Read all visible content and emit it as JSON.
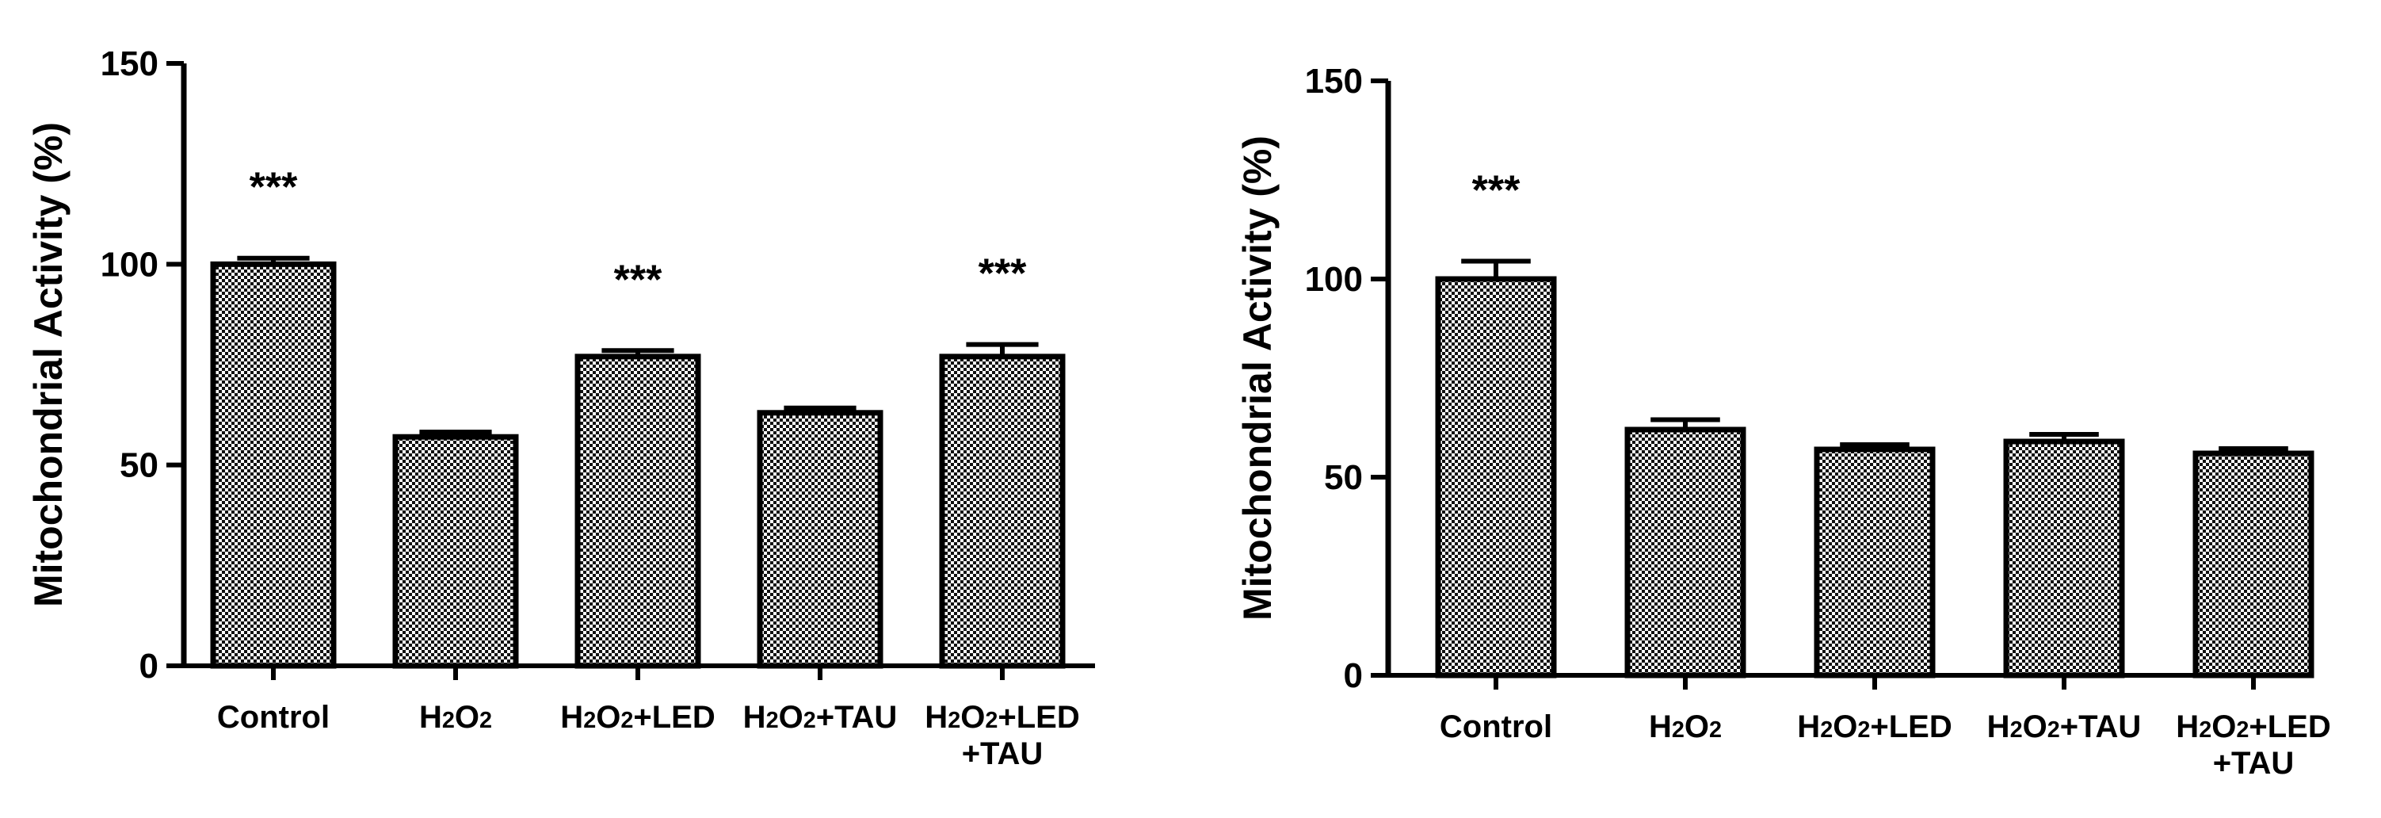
{
  "chart_data": [
    {
      "type": "bar",
      "title": "",
      "xlabel": "",
      "ylabel": "Mitochondrial Activity (%)",
      "ylim": [
        0,
        150
      ],
      "yticks": [
        "0",
        "50",
        "100",
        "150"
      ],
      "categories": [
        [
          "Control"
        ],
        [
          "H2O2"
        ],
        [
          "H2O2+LED"
        ],
        [
          "H2O2+TAU"
        ],
        [
          "H2O2+LED",
          "+TAU"
        ]
      ],
      "values": [
        100,
        57,
        77,
        63,
        77
      ],
      "errors": [
        1.5,
        1.2,
        1.5,
        1.2,
        3
      ],
      "annotations": [
        "***",
        "",
        "***",
        "",
        "***"
      ],
      "grid": false,
      "bar_fill": "checkered",
      "bar_color": "#000000"
    },
    {
      "type": "bar",
      "title": "",
      "xlabel": "",
      "ylabel": "Mitochondrial Activity (%)",
      "ylim": [
        0,
        150
      ],
      "yticks": [
        "0",
        "50",
        "100",
        "150"
      ],
      "categories": [
        [
          "Control"
        ],
        [
          "H2O2"
        ],
        [
          "H2O2+LED"
        ],
        [
          "H2O2+TAU"
        ],
        [
          "H2O2+LED",
          "+TAU"
        ]
      ],
      "values": [
        100,
        62,
        57,
        59,
        56
      ],
      "errors": [
        4.5,
        2.5,
        1.2,
        1.8,
        1.2
      ],
      "annotations": [
        "***",
        "",
        "",
        "",
        ""
      ],
      "grid": false,
      "bar_fill": "checkered",
      "bar_color": "#000000"
    }
  ]
}
